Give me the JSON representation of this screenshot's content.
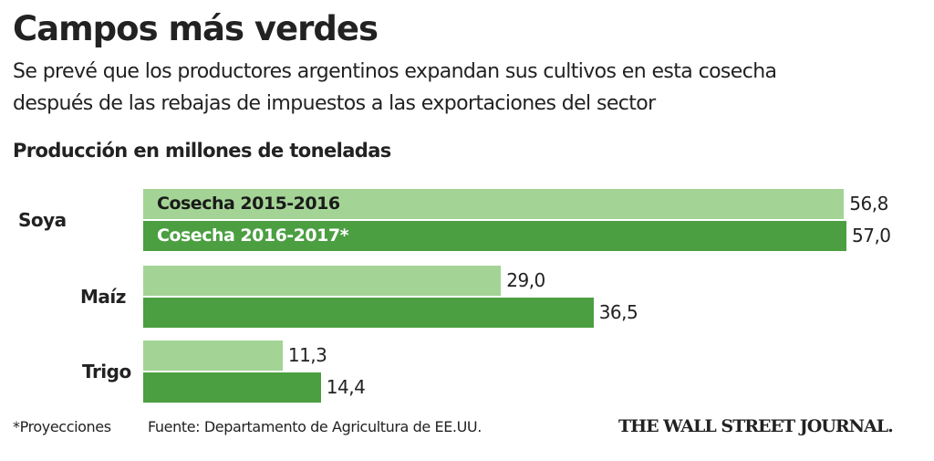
{
  "title": "Campos más verdes",
  "subtitle_lines": [
    "Se prevé que los productores argentinos expandan sus cultivos en esta cosecha",
    "después de las rebajas de impuestos a las exportaciones del sector"
  ],
  "footnote": "*Proyecciones",
  "source": "Fuente: Departamento de Agricultura de EE.UU.",
  "publisher": "THE WALL STREET JOURNAL.",
  "colors": {
    "light": "#a3d495",
    "dark": "#4b9f41"
  },
  "chart_data": {
    "type": "bar",
    "orientation": "horizontal",
    "title": "Producción en millones de toneladas",
    "categories": [
      "Soya",
      "Maíz",
      "Trigo"
    ],
    "series": [
      {
        "name": "Cosecha 2015-2016",
        "values": [
          56.8,
          29.0,
          11.3
        ],
        "labels": [
          "56,8",
          "29,0",
          "11,3"
        ]
      },
      {
        "name": "Cosecha 2016-2017*",
        "values": [
          57.0,
          36.5,
          14.4
        ],
        "labels": [
          "57,0",
          "36,5",
          "14,4"
        ]
      }
    ],
    "xlim": [
      0,
      57
    ],
    "grid": false,
    "legend": "inside-first-bars"
  }
}
